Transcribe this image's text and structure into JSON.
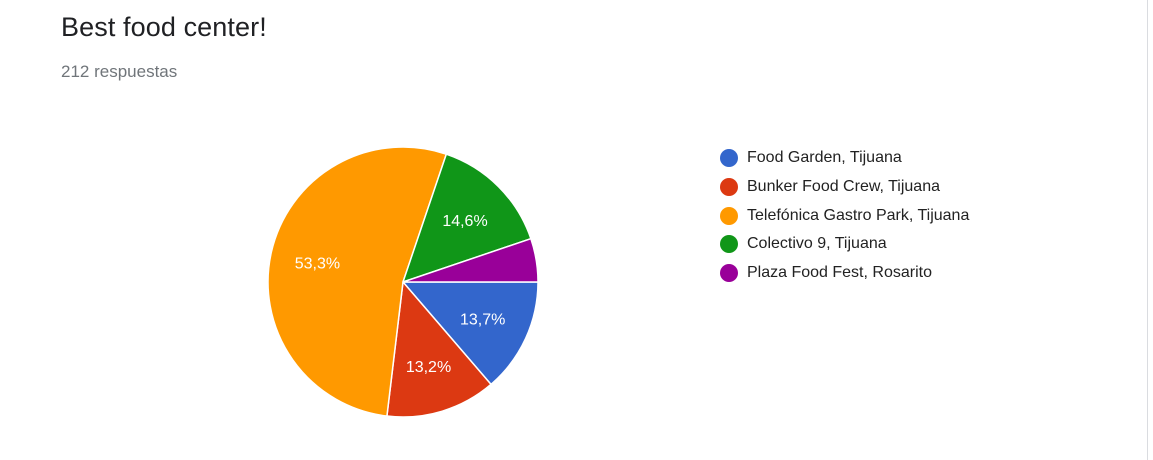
{
  "title": "Best food center!",
  "response_count": "212 respuestas",
  "chart_data": {
    "type": "pie",
    "title": "Best food center!",
    "subtitle": "212 respuestas",
    "legend_position": "right",
    "start_angle_deg": 90,
    "direction": "clockwise",
    "slices": [
      {
        "label": "Food Garden, Tijuana",
        "value": 13.7,
        "display": "13,7%",
        "color": "#3366cc"
      },
      {
        "label": "Bunker Food Crew, Tijuana",
        "value": 13.2,
        "display": "13,2%",
        "color": "#dc3912"
      },
      {
        "label": "Telefónica Gastro Park, Tijuana",
        "value": 53.3,
        "display": "53,3%",
        "color": "#ff9900"
      },
      {
        "label": "Colectivo 9, Tijuana",
        "value": 14.6,
        "display": "14,6%",
        "color": "#109618"
      },
      {
        "label": "Plaza Food Fest, Rosarito",
        "value": 5.2,
        "display": "",
        "color": "#990099"
      }
    ]
  }
}
